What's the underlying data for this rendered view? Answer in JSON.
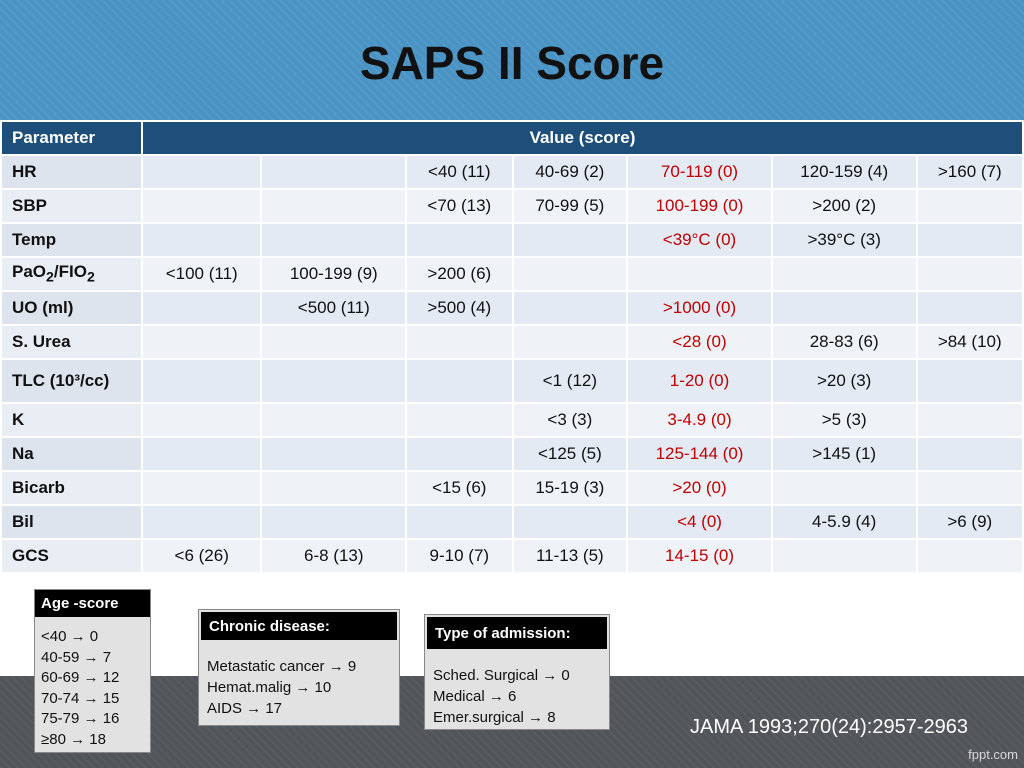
{
  "title": "SAPS II Score",
  "table": {
    "header": {
      "parameter": "Parameter",
      "value": "Value (score)"
    },
    "rows": [
      {
        "name": "HR",
        "cells": [
          "",
          "",
          "<40 (11)",
          "40-69 (2)",
          "70-119 (0)",
          "120-159 (4)",
          ">160 (7)"
        ]
      },
      {
        "name": "SBP",
        "cells": [
          "",
          "",
          "<70 (13)",
          "70-99 (5)",
          "100-199 (0)",
          ">200 (2)",
          ""
        ]
      },
      {
        "name": "Temp",
        "cells": [
          "",
          "",
          "",
          "",
          "<39°C (0)",
          ">39°C (3)",
          ""
        ]
      },
      {
        "name": "PaO2/FIO2",
        "cells": [
          "<100 (11)",
          "100-199 (9)",
          ">200 (6)",
          "",
          "",
          "",
          ""
        ]
      },
      {
        "name": "UO (ml)",
        "cells": [
          "",
          "<500 (11)",
          ">500 (4)",
          "",
          ">1000 (0)",
          "",
          ""
        ]
      },
      {
        "name": "S. Urea",
        "cells": [
          "",
          "",
          "",
          "",
          "<28 (0)",
          "28-83 (6)",
          ">84 (10)"
        ]
      },
      {
        "name": "TLC (10³/cc)",
        "cells": [
          "",
          "",
          "",
          "<1 (12)",
          "1-20 (0)",
          ">20 (3)",
          ""
        ]
      },
      {
        "name": "K",
        "cells": [
          "",
          "",
          "",
          "<3 (3)",
          "3-4.9 (0)",
          ">5 (3)",
          ""
        ]
      },
      {
        "name": "Na",
        "cells": [
          "",
          "",
          "",
          "<125 (5)",
          "125-144 (0)",
          ">145 (1)",
          ""
        ]
      },
      {
        "name": "Bicarb",
        "cells": [
          "",
          "",
          "<15 (6)",
          "15-19 (3)",
          ">20 (0)",
          "",
          ""
        ]
      },
      {
        "name": "Bil",
        "cells": [
          "",
          "",
          "",
          "",
          "<4 (0)",
          "4-5.9 (4)",
          ">6 (9)"
        ]
      },
      {
        "name": "GCS",
        "cells": [
          "<6 (26)",
          "6-8 (13)",
          "9-10 (7)",
          "11-13 (5)",
          "14-15 (0)",
          "",
          ""
        ]
      }
    ],
    "red_color": "#c00000",
    "header_color": "#1e4f7a"
  },
  "age": {
    "title": "Age -score",
    "items": [
      "<40 → 0",
      "40-59 → 7",
      "60-69 → 12",
      "70-74 → 15",
      "75-79 → 16",
      "≥80 → 18"
    ]
  },
  "chronic": {
    "title": "Chronic disease:",
    "items": [
      "Metastatic cancer → 9",
      "Hemat.malig → 10",
      "AIDS → 17"
    ]
  },
  "admission": {
    "title": "Type of admission:",
    "items": [
      "Sched. Surgical → 0",
      "Medical → 6",
      "Emer.surgical → 8"
    ]
  },
  "citation": "JAMA 1993;270(24):2957-2963",
  "brand": "fppt.com"
}
